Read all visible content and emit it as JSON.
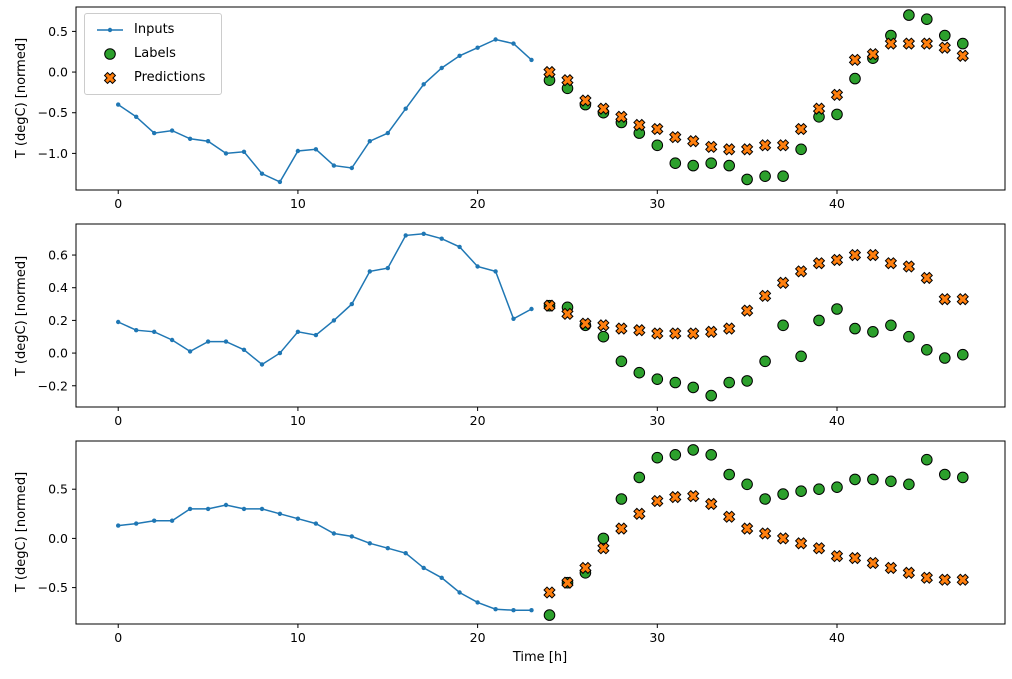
{
  "figure": {
    "background": "#ffffff",
    "xlabel": "Time [h]",
    "ylabel": "T (degC) [normed]"
  },
  "legend": {
    "items": [
      {
        "label": "Inputs",
        "marker": "line-dot",
        "color": "#1f77b4"
      },
      {
        "label": "Labels",
        "marker": "circle",
        "color": "#2ca02c"
      },
      {
        "label": "Predictions",
        "marker": "x",
        "color": "#ff7f0e"
      }
    ]
  },
  "chart_data": [
    {
      "type": "line",
      "title": "",
      "xlabel": "",
      "ylabel": "T (degC) [normed]",
      "xlim": [
        -2.35,
        49.35
      ],
      "ylim": [
        -1.45,
        0.8
      ],
      "xticks": [
        0,
        10,
        20,
        30,
        40
      ],
      "yticks": [
        0.5,
        0.0,
        -0.5,
        -1.0
      ],
      "series": [
        {
          "name": "Inputs",
          "style": "line",
          "marker": "dot",
          "color": "#1f77b4",
          "x": [
            0,
            1,
            2,
            3,
            4,
            5,
            6,
            7,
            8,
            9,
            10,
            11,
            12,
            13,
            14,
            15,
            16,
            17,
            18,
            19,
            20,
            21,
            22,
            23
          ],
          "y": [
            -0.4,
            -0.55,
            -0.75,
            -0.72,
            -0.82,
            -0.85,
            -1.0,
            -0.98,
            -1.25,
            -1.35,
            -0.97,
            -0.95,
            -1.15,
            -1.18,
            -0.85,
            -0.75,
            -0.45,
            -0.15,
            0.05,
            0.2,
            0.3,
            0.4,
            0.35,
            0.15
          ]
        },
        {
          "name": "Labels",
          "style": "scatter",
          "marker": "circle",
          "color": "#2ca02c",
          "edge": "#000000",
          "x": [
            24,
            25,
            26,
            27,
            28,
            29,
            30,
            31,
            32,
            33,
            34,
            35,
            36,
            37,
            38,
            39,
            40,
            41,
            42,
            43,
            44,
            45,
            46,
            47
          ],
          "y": [
            -0.1,
            -0.2,
            -0.4,
            -0.5,
            -0.62,
            -0.75,
            -0.9,
            -1.12,
            -1.15,
            -1.12,
            -1.15,
            -1.32,
            -1.28,
            -1.28,
            -0.95,
            -0.55,
            -0.52,
            -0.08,
            0.17,
            0.45,
            0.7,
            0.65,
            0.45,
            0.35
          ]
        },
        {
          "name": "Predictions",
          "style": "scatter",
          "marker": "x",
          "color": "#ff7f0e",
          "edge": "#000000",
          "x": [
            24,
            25,
            26,
            27,
            28,
            29,
            30,
            31,
            32,
            33,
            34,
            35,
            36,
            37,
            38,
            39,
            40,
            41,
            42,
            43,
            44,
            45,
            46,
            47
          ],
          "y": [
            0.0,
            -0.1,
            -0.35,
            -0.45,
            -0.55,
            -0.65,
            -0.7,
            -0.8,
            -0.85,
            -0.92,
            -0.95,
            -0.95,
            -0.9,
            -0.9,
            -0.7,
            -0.45,
            -0.28,
            0.15,
            0.22,
            0.35,
            0.35,
            0.35,
            0.3,
            0.2
          ]
        }
      ]
    },
    {
      "type": "line",
      "title": "",
      "xlabel": "",
      "ylabel": "T (degC) [normed]",
      "xlim": [
        -2.35,
        49.35
      ],
      "ylim": [
        -0.33,
        0.79
      ],
      "xticks": [
        0,
        10,
        20,
        30,
        40
      ],
      "yticks": [
        0.6,
        0.4,
        0.2,
        0.0,
        -0.2
      ],
      "series": [
        {
          "name": "Inputs",
          "style": "line",
          "marker": "dot",
          "color": "#1f77b4",
          "x": [
            0,
            1,
            2,
            3,
            4,
            5,
            6,
            7,
            8,
            9,
            10,
            11,
            12,
            13,
            14,
            15,
            16,
            17,
            18,
            19,
            20,
            21,
            22,
            23
          ],
          "y": [
            0.19,
            0.14,
            0.13,
            0.08,
            0.01,
            0.07,
            0.07,
            0.02,
            -0.07,
            0.0,
            0.13,
            0.11,
            0.2,
            0.3,
            0.5,
            0.52,
            0.72,
            0.73,
            0.7,
            0.65,
            0.53,
            0.5,
            0.21,
            0.27
          ]
        },
        {
          "name": "Labels",
          "style": "scatter",
          "marker": "circle",
          "color": "#2ca02c",
          "edge": "#000000",
          "x": [
            24,
            25,
            26,
            27,
            28,
            29,
            30,
            31,
            32,
            33,
            34,
            35,
            36,
            37,
            38,
            39,
            40,
            41,
            42,
            43,
            44,
            45,
            46,
            47
          ],
          "y": [
            0.29,
            0.28,
            0.17,
            0.1,
            -0.05,
            -0.12,
            -0.16,
            -0.18,
            -0.21,
            -0.26,
            -0.18,
            -0.17,
            -0.05,
            0.17,
            -0.02,
            0.2,
            0.27,
            0.15,
            0.13,
            0.17,
            0.1,
            0.02,
            -0.03,
            -0.01
          ]
        },
        {
          "name": "Predictions",
          "style": "scatter",
          "marker": "x",
          "color": "#ff7f0e",
          "edge": "#000000",
          "x": [
            24,
            25,
            26,
            27,
            28,
            29,
            30,
            31,
            32,
            33,
            34,
            35,
            36,
            37,
            38,
            39,
            40,
            41,
            42,
            43,
            44,
            45,
            46,
            47
          ],
          "y": [
            0.29,
            0.24,
            0.18,
            0.17,
            0.15,
            0.14,
            0.12,
            0.12,
            0.12,
            0.13,
            0.15,
            0.26,
            0.35,
            0.43,
            0.5,
            0.55,
            0.57,
            0.6,
            0.6,
            0.55,
            0.53,
            0.46,
            0.33,
            0.33
          ]
        }
      ]
    },
    {
      "type": "line",
      "title": "",
      "xlabel": "Time [h]",
      "ylabel": "T (degC) [normed]",
      "xlim": [
        -2.35,
        49.35
      ],
      "ylim": [
        -0.87,
        0.99
      ],
      "xticks": [
        0,
        10,
        20,
        30,
        40
      ],
      "yticks": [
        0.5,
        0.0,
        -0.5
      ],
      "series": [
        {
          "name": "Inputs",
          "style": "line",
          "marker": "dot",
          "color": "#1f77b4",
          "x": [
            0,
            1,
            2,
            3,
            4,
            5,
            6,
            7,
            8,
            9,
            10,
            11,
            12,
            13,
            14,
            15,
            16,
            17,
            18,
            19,
            20,
            21,
            22,
            23
          ],
          "y": [
            0.13,
            0.15,
            0.18,
            0.18,
            0.3,
            0.3,
            0.34,
            0.3,
            0.3,
            0.25,
            0.2,
            0.15,
            0.05,
            0.02,
            -0.05,
            -0.1,
            -0.15,
            -0.3,
            -0.4,
            -0.55,
            -0.65,
            -0.72,
            -0.73,
            -0.73
          ]
        },
        {
          "name": "Labels",
          "style": "scatter",
          "marker": "circle",
          "color": "#2ca02c",
          "edge": "#000000",
          "x": [
            24,
            25,
            26,
            27,
            28,
            29,
            30,
            31,
            32,
            33,
            34,
            35,
            36,
            37,
            38,
            39,
            40,
            41,
            42,
            43,
            44,
            45,
            46,
            47
          ],
          "y": [
            -0.78,
            -0.45,
            -0.35,
            0.0,
            0.4,
            0.62,
            0.82,
            0.85,
            0.9,
            0.85,
            0.65,
            0.55,
            0.4,
            0.45,
            0.48,
            0.5,
            0.52,
            0.6,
            0.6,
            0.58,
            0.55,
            0.8,
            0.65,
            0.62
          ]
        },
        {
          "name": "Predictions",
          "style": "scatter",
          "marker": "x",
          "color": "#ff7f0e",
          "edge": "#000000",
          "x": [
            24,
            25,
            26,
            27,
            28,
            29,
            30,
            31,
            32,
            33,
            34,
            35,
            36,
            37,
            38,
            39,
            40,
            41,
            42,
            43,
            44,
            45,
            46,
            47
          ],
          "y": [
            -0.55,
            -0.45,
            -0.3,
            -0.1,
            0.1,
            0.25,
            0.38,
            0.42,
            0.43,
            0.35,
            0.22,
            0.1,
            0.05,
            0.0,
            -0.05,
            -0.1,
            -0.18,
            -0.2,
            -0.25,
            -0.3,
            -0.35,
            -0.4,
            -0.42,
            -0.42
          ]
        }
      ]
    }
  ]
}
